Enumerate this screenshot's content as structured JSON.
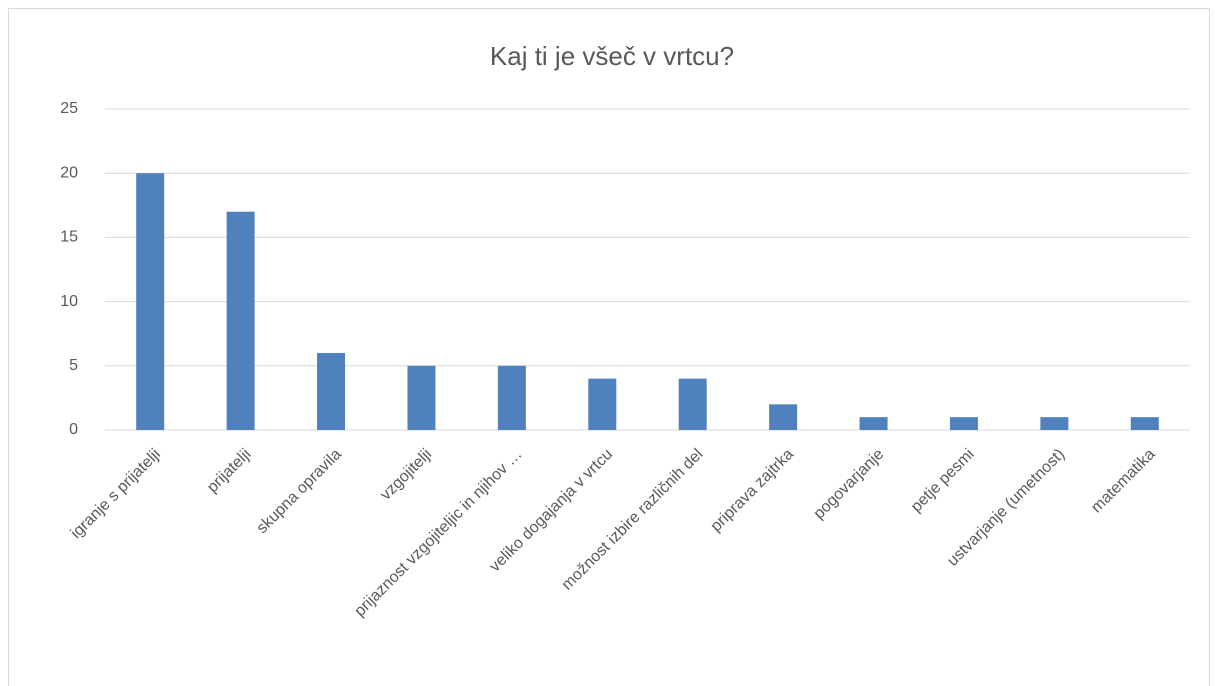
{
  "chart_data": {
    "type": "bar",
    "title": "Kaj ti je všeč v vrtcu?",
    "categories": [
      "igranje s prijatelji",
      "prijatelji",
      "skupna opravila",
      "vzgojitelji",
      "prijaznost vzgojiteljic in njihov …",
      "veliko dogajanja v vrtcu",
      "možnost izbire različnih del",
      "priprava zajtrka",
      "pogovarjanje",
      "petje pesmi",
      "ustvarjanje (umetnost)",
      "matematika"
    ],
    "values": [
      20,
      17,
      6,
      5,
      5,
      4,
      4,
      2,
      1,
      1,
      1,
      1
    ],
    "color": "#4f81bd",
    "ylim": [
      0,
      25
    ],
    "yticks": [
      0,
      5,
      10,
      15,
      20,
      25
    ],
    "grid": true
  }
}
